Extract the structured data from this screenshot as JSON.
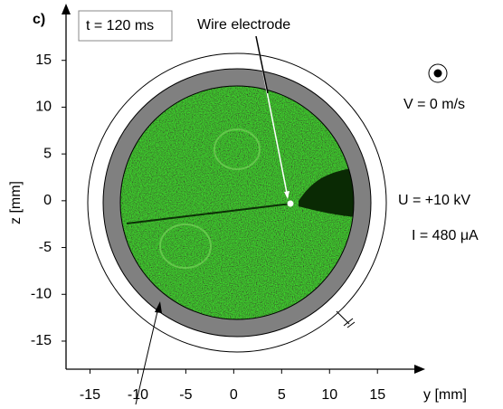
{
  "chart_data": {
    "type": "image",
    "panel_label": "c)",
    "time_label": "t = 120 ms",
    "annotations": [
      "Wire electrode",
      "V = 0 m/s",
      "U = +10 kV",
      "I = 480 μA"
    ],
    "xlabel": "y [mm]",
    "ylabel": "z [mm]",
    "xlim": [
      -17.5,
      19.7
    ],
    "ylim": [
      -18,
      20
    ],
    "xticks": [
      -15,
      -10,
      -5,
      0,
      5,
      10,
      15
    ],
    "yticks": [
      -15,
      -10,
      -5,
      0,
      5,
      10,
      15
    ]
  }
}
